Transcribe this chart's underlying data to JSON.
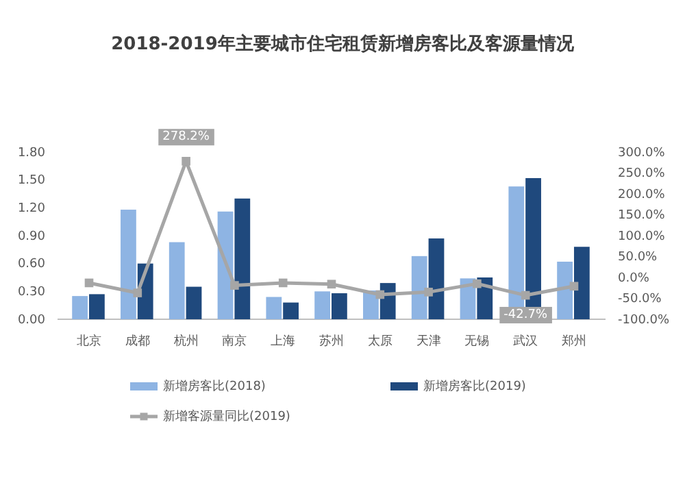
{
  "chart_data": {
    "type": "bar",
    "title": "2018-2019年主要城市住宅租赁新增房客比及客源量情况",
    "categories": [
      "北京",
      "成都",
      "杭州",
      "南京",
      "上海",
      "苏州",
      "太原",
      "天津",
      "无锡",
      "武汉",
      "郑州"
    ],
    "series": [
      {
        "name": "新增房客比(2018)",
        "color": "#8eb4e3",
        "values": [
          0.25,
          1.18,
          0.83,
          1.16,
          0.24,
          0.3,
          0.31,
          0.68,
          0.44,
          1.43,
          0.62
        ]
      },
      {
        "name": "新增房客比(2019)",
        "color": "#1f497d",
        "values": [
          0.27,
          0.6,
          0.35,
          1.3,
          0.18,
          0.28,
          0.39,
          0.87,
          0.45,
          1.52,
          0.78
        ]
      },
      {
        "name": "新增客源量同比(2019)",
        "type": "line",
        "axis": "y2",
        "color": "#a6a6a6",
        "marker": "square",
        "values": [
          -13,
          -37,
          278.2,
          -19,
          -13,
          -16,
          -41,
          -35,
          -15,
          -42.7,
          -21
        ],
        "value_labels": [
          null,
          null,
          "278.2%",
          null,
          null,
          null,
          null,
          null,
          null,
          "-42.7%",
          null
        ]
      }
    ],
    "ylim": [
      0,
      1.8
    ],
    "yticks": [
      {
        "value": 0,
        "label": "0.00"
      },
      {
        "value": 0.3,
        "label": "0.30"
      },
      {
        "value": 0.6,
        "label": "0.60"
      },
      {
        "value": 0.9,
        "label": "0.90"
      },
      {
        "value": 1.2,
        "label": "1.20"
      },
      {
        "value": 1.5,
        "label": "1.50"
      },
      {
        "value": 1.8,
        "label": "1.80"
      }
    ],
    "y2lim": [
      -100,
      300
    ],
    "y2ticks": [
      {
        "value": -100,
        "label": "-100.0%"
      },
      {
        "value": -50,
        "label": "-50.0%"
      },
      {
        "value": 0,
        "label": "0.0%"
      },
      {
        "value": 50,
        "label": "50.0%"
      },
      {
        "value": 100,
        "label": "100.0%"
      },
      {
        "value": 150,
        "label": "150.0%"
      },
      {
        "value": 200,
        "label": "200.0%"
      },
      {
        "value": 250,
        "label": "250.0%"
      },
      {
        "value": 300,
        "label": "300.0%"
      }
    ],
    "legend": "bottom",
    "grid": false
  }
}
